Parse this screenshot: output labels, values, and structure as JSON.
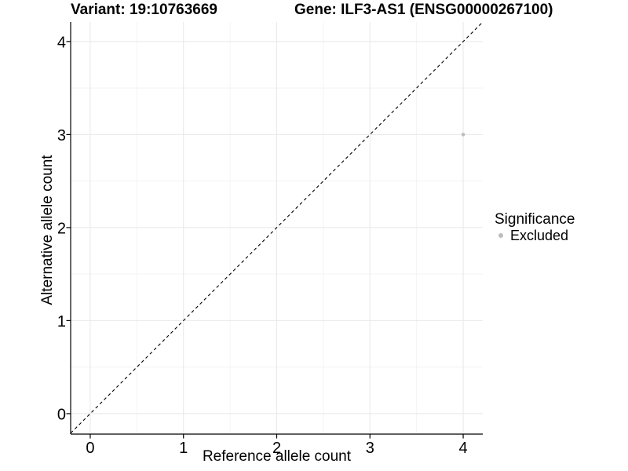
{
  "header": {
    "variant_title": "Variant: 19:10763669",
    "gene_title": "Gene: ILF3-AS1 (ENSG00000267100)"
  },
  "chart_data": {
    "type": "scatter",
    "title": "",
    "xlabel": "Reference allele count",
    "ylabel": "Alternative allele count",
    "xlim": [
      -0.21,
      4.21
    ],
    "ylim": [
      -0.22,
      4.21
    ],
    "x_ticks": [
      0,
      1,
      2,
      3,
      4
    ],
    "y_ticks": [
      0,
      1,
      2,
      3,
      4
    ],
    "grid": "major+minor",
    "minor_grid_at_half_units": true,
    "reference_line": {
      "kind": "identity",
      "slope": 1,
      "intercept": 0,
      "style": "dashed",
      "color": "#000000"
    },
    "series": [
      {
        "name": "Excluded",
        "color": "#bdbdbd",
        "point_radius": 2.3,
        "points": [
          {
            "x": 4,
            "y": 3
          }
        ]
      }
    ],
    "legend": {
      "title": "Significance",
      "position": "right",
      "items": [
        {
          "label": "Excluded",
          "color": "#bdbdbd"
        }
      ]
    },
    "colors": {
      "background": "#ffffff",
      "grid_major": "#e8e8e8",
      "grid_minor": "#f3f3f3",
      "axis": "#000000",
      "tick_text": "#000000"
    }
  }
}
